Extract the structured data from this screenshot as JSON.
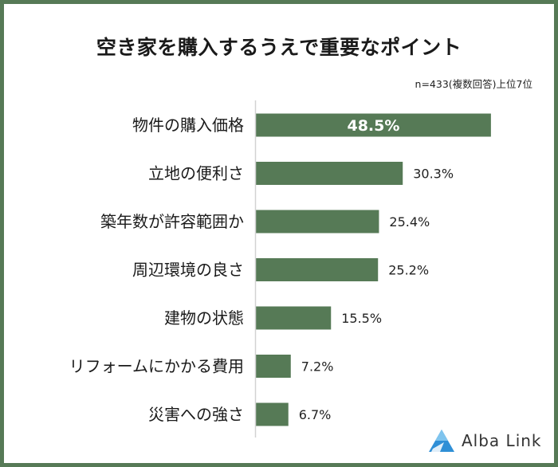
{
  "chart_data": {
    "type": "bar",
    "orientation": "horizontal",
    "title": "空き家を購入するうえで重要なポイント",
    "note": "n=433(複数回答)上位7位",
    "categories": [
      "物件の購入価格",
      "立地の便利さ",
      "築年数が許容範囲か",
      "周辺環境の良さ",
      "建物の状態",
      "リフォームにかかる費用",
      "災害への強さ"
    ],
    "values": [
      48.5,
      30.3,
      25.4,
      25.2,
      15.5,
      7.2,
      6.7
    ],
    "value_labels": [
      "48.5%",
      "30.3%",
      "25.4%",
      "25.2%",
      "15.5%",
      "7.2%",
      "6.7%"
    ],
    "xlim": [
      0,
      50
    ],
    "grid": false,
    "bar_color": "#567a56",
    "frame_color": "#567a56"
  },
  "brand": {
    "name": "Alba Link",
    "logo_icon": "mountain-logo-icon"
  }
}
